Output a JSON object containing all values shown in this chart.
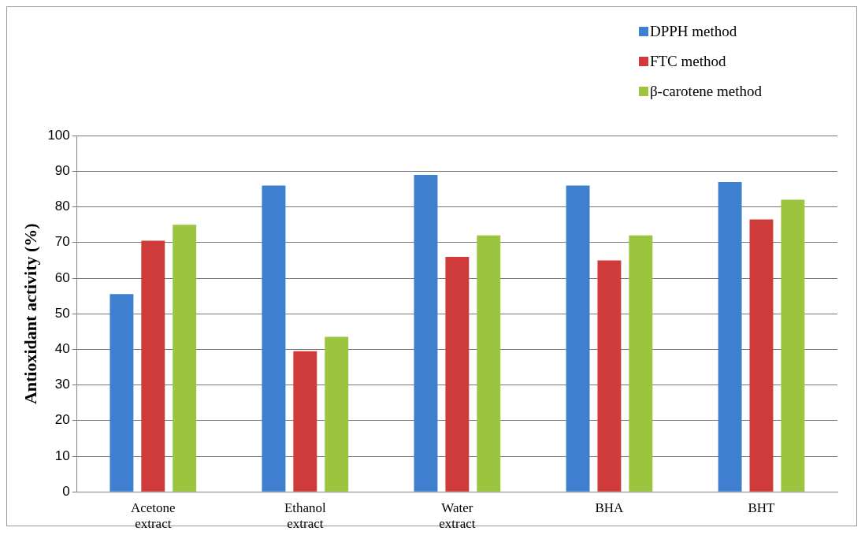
{
  "chart_data": {
    "type": "bar",
    "ylabel": "Antioxidant activity (%)",
    "categories": [
      "Acetone extract",
      "Ethanol extract",
      "Water extract",
      "BHA",
      "BHT"
    ],
    "series": [
      {
        "name": "DPPH method",
        "color": "#3f7fd0",
        "values": [
          55.5,
          86,
          89,
          86,
          87
        ]
      },
      {
        "name": "FTC method",
        "color": "#cf3b3b",
        "values": [
          70.5,
          39.5,
          66,
          65,
          76.5
        ]
      },
      {
        "name": "β-carotene method",
        "color": "#9bc43f",
        "values": [
          75,
          43.5,
          72,
          72,
          82
        ]
      }
    ],
    "ylim": [
      0,
      100
    ],
    "yticks": [
      0,
      10,
      20,
      30,
      40,
      50,
      60,
      70,
      80,
      90,
      100
    ],
    "grid": "y",
    "legend": "top right"
  }
}
